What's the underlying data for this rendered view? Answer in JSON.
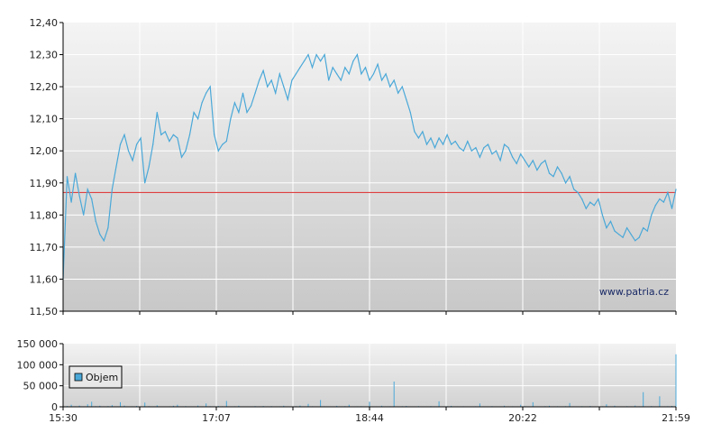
{
  "watermark": "www.patria.cz",
  "colors": {
    "price_line": "#4aa8d8",
    "reference_line": "#e04040",
    "volume_bar": "#4aa8d8",
    "grid": "#ffffff",
    "axis": "#000000"
  },
  "chart_data": [
    {
      "type": "line",
      "ylim": [
        11.5,
        12.4
      ],
      "y_ticks": [
        "12,40",
        "12,30",
        "12,20",
        "12,10",
        "12,00",
        "11,90",
        "11,80",
        "11,70",
        "11,60",
        "11,50"
      ],
      "reference_value": 11.87,
      "grid": true,
      "series": [
        {
          "points": [
            [
              0,
              11.6
            ],
            [
              1,
              11.92
            ],
            [
              2,
              11.84
            ],
            [
              3,
              11.93
            ],
            [
              4,
              11.86
            ],
            [
              5,
              11.8
            ],
            [
              6,
              11.88
            ],
            [
              7,
              11.85
            ],
            [
              8,
              11.78
            ],
            [
              9,
              11.74
            ],
            [
              10,
              11.72
            ],
            [
              11,
              11.76
            ],
            [
              12,
              11.88
            ],
            [
              13,
              11.95
            ],
            [
              14,
              12.02
            ],
            [
              15,
              12.05
            ],
            [
              16,
              12.0
            ],
            [
              17,
              11.97
            ],
            [
              18,
              12.02
            ],
            [
              19,
              12.04
            ],
            [
              20,
              11.9
            ],
            [
              21,
              11.95
            ],
            [
              22,
              12.02
            ],
            [
              23,
              12.12
            ],
            [
              24,
              12.05
            ],
            [
              25,
              12.06
            ],
            [
              26,
              12.03
            ],
            [
              27,
              12.05
            ],
            [
              28,
              12.04
            ],
            [
              29,
              11.98
            ],
            [
              30,
              12.0
            ],
            [
              31,
              12.05
            ],
            [
              32,
              12.12
            ],
            [
              33,
              12.1
            ],
            [
              34,
              12.15
            ],
            [
              35,
              12.18
            ],
            [
              36,
              12.2
            ],
            [
              37,
              12.05
            ],
            [
              38,
              12.0
            ],
            [
              39,
              12.02
            ],
            [
              40,
              12.03
            ],
            [
              41,
              12.1
            ],
            [
              42,
              12.15
            ],
            [
              43,
              12.12
            ],
            [
              44,
              12.18
            ],
            [
              45,
              12.12
            ],
            [
              46,
              12.14
            ],
            [
              47,
              12.18
            ],
            [
              48,
              12.22
            ],
            [
              49,
              12.25
            ],
            [
              50,
              12.2
            ],
            [
              51,
              12.22
            ],
            [
              52,
              12.18
            ],
            [
              53,
              12.24
            ],
            [
              54,
              12.2
            ],
            [
              55,
              12.16
            ],
            [
              56,
              12.22
            ],
            [
              57,
              12.24
            ],
            [
              58,
              12.26
            ],
            [
              59,
              12.28
            ],
            [
              60,
              12.3
            ],
            [
              61,
              12.26
            ],
            [
              62,
              12.3
            ],
            [
              63,
              12.28
            ],
            [
              64,
              12.3
            ],
            [
              65,
              12.22
            ],
            [
              66,
              12.26
            ],
            [
              67,
              12.24
            ],
            [
              68,
              12.22
            ],
            [
              69,
              12.26
            ],
            [
              70,
              12.24
            ],
            [
              71,
              12.28
            ],
            [
              72,
              12.3
            ],
            [
              73,
              12.24
            ],
            [
              74,
              12.26
            ],
            [
              75,
              12.22
            ],
            [
              76,
              12.24
            ],
            [
              77,
              12.27
            ],
            [
              78,
              12.22
            ],
            [
              79,
              12.24
            ],
            [
              80,
              12.2
            ],
            [
              81,
              12.22
            ],
            [
              82,
              12.18
            ],
            [
              83,
              12.2
            ],
            [
              84,
              12.16
            ],
            [
              85,
              12.12
            ],
            [
              86,
              12.06
            ],
            [
              87,
              12.04
            ],
            [
              88,
              12.06
            ],
            [
              89,
              12.02
            ],
            [
              90,
              12.04
            ],
            [
              91,
              12.01
            ],
            [
              92,
              12.04
            ],
            [
              93,
              12.02
            ],
            [
              94,
              12.05
            ],
            [
              95,
              12.02
            ],
            [
              96,
              12.03
            ],
            [
              97,
              12.01
            ],
            [
              98,
              12.0
            ],
            [
              99,
              12.03
            ],
            [
              100,
              12.0
            ],
            [
              101,
              12.01
            ],
            [
              102,
              11.98
            ],
            [
              103,
              12.01
            ],
            [
              104,
              12.02
            ],
            [
              105,
              11.99
            ],
            [
              106,
              12.0
            ],
            [
              107,
              11.97
            ],
            [
              108,
              12.02
            ],
            [
              109,
              12.01
            ],
            [
              110,
              11.98
            ],
            [
              111,
              11.96
            ],
            [
              112,
              11.99
            ],
            [
              113,
              11.97
            ],
            [
              114,
              11.95
            ],
            [
              115,
              11.97
            ],
            [
              116,
              11.94
            ],
            [
              117,
              11.96
            ],
            [
              118,
              11.97
            ],
            [
              119,
              11.93
            ],
            [
              120,
              11.92
            ],
            [
              121,
              11.95
            ],
            [
              122,
              11.93
            ],
            [
              123,
              11.9
            ],
            [
              124,
              11.92
            ],
            [
              125,
              11.88
            ],
            [
              126,
              11.87
            ],
            [
              127,
              11.85
            ],
            [
              128,
              11.82
            ],
            [
              129,
              11.84
            ],
            [
              130,
              11.83
            ],
            [
              131,
              11.85
            ],
            [
              132,
              11.8
            ],
            [
              133,
              11.76
            ],
            [
              134,
              11.78
            ],
            [
              135,
              11.75
            ],
            [
              136,
              11.74
            ],
            [
              137,
              11.73
            ],
            [
              138,
              11.76
            ],
            [
              139,
              11.74
            ],
            [
              140,
              11.72
            ],
            [
              141,
              11.73
            ],
            [
              142,
              11.76
            ],
            [
              143,
              11.75
            ],
            [
              144,
              11.8
            ],
            [
              145,
              11.83
            ],
            [
              146,
              11.85
            ],
            [
              147,
              11.84
            ],
            [
              148,
              11.87
            ],
            [
              149,
              11.82
            ],
            [
              150,
              11.88
            ]
          ]
        }
      ]
    },
    {
      "type": "bar",
      "ylim": [
        0,
        150000
      ],
      "y_ticks": [
        "150 000",
        "100 000",
        "50 000",
        "0"
      ],
      "x_ticks": [
        "15:30",
        "17:07",
        "18:44",
        "20:22",
        "21:59"
      ],
      "legend": "Objem",
      "legend_position": "bottom-left",
      "grid": true,
      "values": [
        500,
        2000,
        5000,
        1200,
        3000,
        800,
        6000,
        12000,
        1500,
        2500,
        900,
        1800,
        4000,
        700,
        11000,
        3000,
        600,
        1200,
        2200,
        800,
        10000,
        1500,
        900,
        3500,
        1000,
        700,
        1200,
        2500,
        5000,
        800,
        1400,
        900,
        600,
        3000,
        1100,
        8000,
        1500,
        700,
        2000,
        1200,
        14000,
        800,
        1300,
        2500,
        900,
        1100,
        600,
        1800,
        1000,
        2000,
        900,
        1400,
        700,
        1200,
        2600,
        1000,
        600,
        1500,
        3000,
        900,
        7000,
        1200,
        800,
        16000,
        1300,
        700,
        1100,
        2400,
        900,
        1500,
        5000,
        800,
        1200,
        1600,
        900,
        12000,
        700,
        1100,
        2500,
        800,
        1300,
        60000,
        900,
        1500,
        2200,
        1000,
        700,
        1400,
        900,
        600,
        1800,
        1100,
        13000,
        700,
        1600,
        2400,
        800,
        1000,
        1200,
        900,
        700,
        1300,
        8000,
        900,
        1100,
        1500,
        700,
        1000,
        2600,
        800,
        1200,
        900,
        5000,
        1400,
        700,
        11000,
        1000,
        600,
        1600,
        2300,
        900,
        1200,
        700,
        1500,
        9000,
        1000,
        800,
        1400,
        600,
        2000,
        1100,
        700,
        1300,
        6000,
        800,
        2500,
        1000,
        900,
        1600,
        700,
        3000,
        1200,
        35000,
        900,
        1800,
        1100,
        25000,
        800,
        1500,
        2200,
        125000
      ]
    }
  ]
}
